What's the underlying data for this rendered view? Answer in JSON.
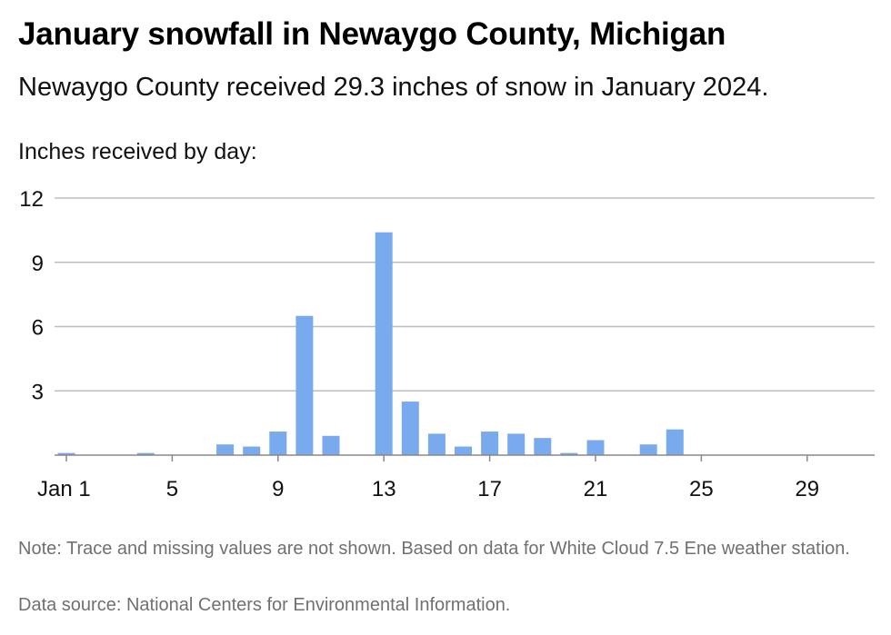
{
  "title": "January snowfall in Newaygo County, Michigan",
  "subtitle": "Newaygo County received 29.3 inches of snow in January 2024.",
  "note": "Note: Trace and missing values are not shown. Based on data for White Cloud 7.5 Ene weather station.",
  "source": "Data source: National Centers for Environmental Information.",
  "colors": {
    "bar": "#7aaaee",
    "grid": "#bdbdbd",
    "axis": "#888888"
  },
  "chart_data": {
    "type": "bar",
    "title": "January snowfall in Newaygo County, Michigan",
    "ylabel": "Inches received by day:",
    "xlabel": "",
    "ylim": [
      0,
      12
    ],
    "yticks": [
      3,
      6,
      9,
      12
    ],
    "xtick_days": [
      1,
      5,
      9,
      13,
      17,
      21,
      25,
      29
    ],
    "xtick_labels": [
      "Jan 1",
      "5",
      "9",
      "13",
      "17",
      "21",
      "25",
      "29"
    ],
    "grid": true,
    "categories": [
      1,
      2,
      3,
      4,
      5,
      6,
      7,
      8,
      9,
      10,
      11,
      12,
      13,
      14,
      15,
      16,
      17,
      18,
      19,
      20,
      21,
      22,
      23,
      24,
      25,
      26,
      27,
      28,
      29,
      30,
      31
    ],
    "values": [
      0.1,
      0,
      0,
      0.1,
      0,
      0,
      0.5,
      0.4,
      1.1,
      6.5,
      0.9,
      0,
      10.4,
      2.5,
      1.0,
      0.4,
      1.1,
      1.0,
      0.8,
      0.1,
      0.7,
      0,
      0.5,
      1.2,
      0,
      0,
      0,
      0,
      0,
      0,
      0
    ]
  }
}
